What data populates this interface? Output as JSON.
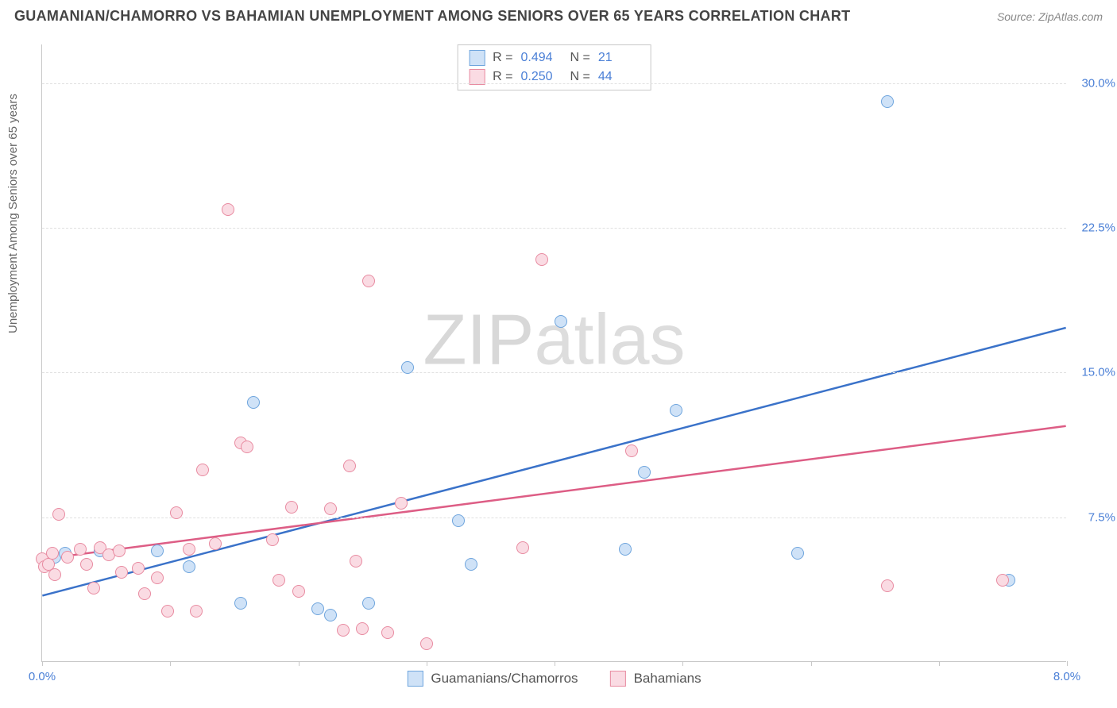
{
  "title": "GUAMANIAN/CHAMORRO VS BAHAMIAN UNEMPLOYMENT AMONG SENIORS OVER 65 YEARS CORRELATION CHART",
  "source": "Source: ZipAtlas.com",
  "ylabel": "Unemployment Among Seniors over 65 years",
  "watermark_a": "ZIP",
  "watermark_b": "atlas",
  "chart": {
    "type": "scatter",
    "xlim": [
      0,
      8
    ],
    "ylim": [
      0,
      32
    ],
    "x_tick_positions": [
      0,
      1,
      2,
      3,
      4,
      5,
      6,
      7,
      8
    ],
    "x_tick_labels": {
      "0": "0.0%",
      "8": "8.0%"
    },
    "y_tick_positions": [
      7.5,
      15.0,
      22.5,
      30.0
    ],
    "y_tick_labels": [
      "7.5%",
      "15.0%",
      "22.5%",
      "30.0%"
    ],
    "grid_color": "#e0e0e0",
    "axis_color": "#c8c8c8",
    "background_color": "#ffffff",
    "point_radius": 8,
    "point_stroke_width": 1.5,
    "trend_line_width": 2.5,
    "series": [
      {
        "name": "Guamanians/Chamorros",
        "fill": "#cfe2f7",
        "stroke": "#6fa5dd",
        "line_color": "#3a72c9",
        "R": "0.494",
        "N": "21",
        "trend": {
          "x1": 0.0,
          "y1": 3.4,
          "x2": 8.0,
          "y2": 17.3
        },
        "points": [
          [
            0.05,
            5.1
          ],
          [
            0.1,
            5.4
          ],
          [
            0.18,
            5.6
          ],
          [
            0.45,
            5.7
          ],
          [
            0.9,
            5.7
          ],
          [
            1.15,
            4.9
          ],
          [
            1.55,
            3.0
          ],
          [
            1.65,
            13.4
          ],
          [
            2.15,
            2.7
          ],
          [
            2.25,
            2.4
          ],
          [
            2.55,
            3.0
          ],
          [
            2.85,
            15.2
          ],
          [
            3.25,
            7.3
          ],
          [
            3.35,
            5.0
          ],
          [
            4.05,
            17.6
          ],
          [
            4.55,
            5.8
          ],
          [
            4.7,
            9.8
          ],
          [
            4.95,
            13.0
          ],
          [
            5.9,
            5.6
          ],
          [
            6.6,
            29.0
          ],
          [
            7.55,
            4.2
          ]
        ]
      },
      {
        "name": "Bahamians",
        "fill": "#fadbe3",
        "stroke": "#e88ba1",
        "line_color": "#dd5d85",
        "R": "0.250",
        "N": "44",
        "trend": {
          "x1": 0.0,
          "y1": 5.3,
          "x2": 8.0,
          "y2": 12.2
        },
        "points": [
          [
            0.0,
            5.3
          ],
          [
            0.02,
            4.9
          ],
          [
            0.05,
            5.0
          ],
          [
            0.08,
            5.6
          ],
          [
            0.1,
            4.5
          ],
          [
            0.13,
            7.6
          ],
          [
            0.2,
            5.4
          ],
          [
            0.3,
            5.8
          ],
          [
            0.35,
            5.0
          ],
          [
            0.4,
            3.8
          ],
          [
            0.45,
            5.9
          ],
          [
            0.52,
            5.5
          ],
          [
            0.6,
            5.7
          ],
          [
            0.62,
            4.6
          ],
          [
            0.75,
            4.8
          ],
          [
            0.8,
            3.5
          ],
          [
            0.9,
            4.3
          ],
          [
            0.98,
            2.6
          ],
          [
            1.05,
            7.7
          ],
          [
            1.15,
            5.8
          ],
          [
            1.2,
            2.6
          ],
          [
            1.25,
            9.9
          ],
          [
            1.35,
            6.1
          ],
          [
            1.45,
            23.4
          ],
          [
            1.55,
            11.3
          ],
          [
            1.6,
            11.1
          ],
          [
            1.8,
            6.3
          ],
          [
            1.85,
            4.2
          ],
          [
            1.95,
            8.0
          ],
          [
            2.0,
            3.6
          ],
          [
            2.25,
            7.9
          ],
          [
            2.35,
            1.6
          ],
          [
            2.4,
            10.1
          ],
          [
            2.45,
            5.2
          ],
          [
            2.5,
            1.7
          ],
          [
            2.55,
            19.7
          ],
          [
            2.7,
            1.5
          ],
          [
            2.8,
            8.2
          ],
          [
            3.0,
            0.9
          ],
          [
            3.75,
            5.9
          ],
          [
            3.9,
            20.8
          ],
          [
            4.6,
            10.9
          ],
          [
            6.6,
            3.9
          ],
          [
            7.5,
            4.2
          ]
        ]
      }
    ]
  },
  "legend_bottom": [
    {
      "label": "Guamanians/Chamorros",
      "fill": "#cfe2f7",
      "stroke": "#6fa5dd"
    },
    {
      "label": "Bahamians",
      "fill": "#fadbe3",
      "stroke": "#e88ba1"
    }
  ]
}
